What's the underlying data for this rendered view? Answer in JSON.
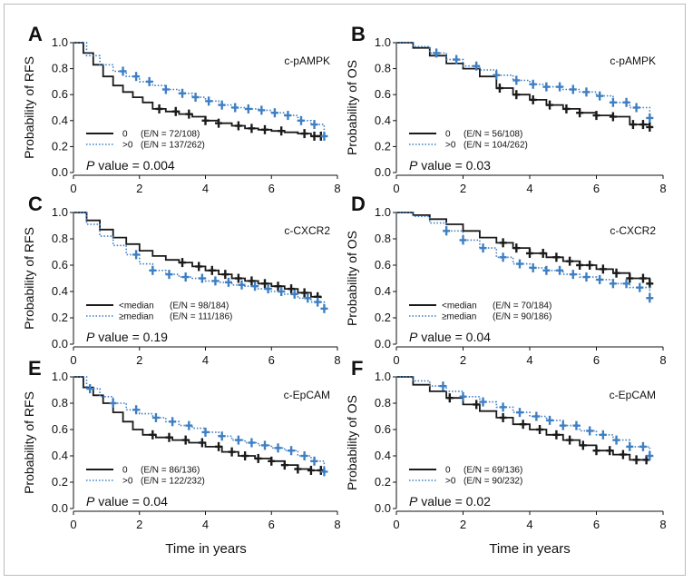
{
  "colors": {
    "black": "#1a1a1a",
    "blue": "#3e7fc3"
  },
  "axis": {
    "x_ticks": [
      "0",
      "2",
      "4",
      "6",
      "8"
    ],
    "y_ticks": [
      "0.0",
      "0.2",
      "0.4",
      "0.6",
      "0.8",
      "1.0"
    ]
  },
  "x_label": "Time in years",
  "chart_data": [
    {
      "letter": "A",
      "type": "line",
      "marker_name": "c-pAMPK",
      "ylabel": "Probability of RFS",
      "p_prefix": "P",
      "p_rest": " value = 0.004",
      "xlim": [
        0,
        8
      ],
      "ylim": [
        0,
        1
      ],
      "xlabel": "",
      "series": [
        {
          "name": "0   (E/N = 72/108)",
          "legend_key": "0",
          "legend_stats": "(E/N = 72/108)",
          "style": "solid",
          "color": "#1a1a1a",
          "x": [
            0,
            0.3,
            0.6,
            0.9,
            1.2,
            1.5,
            1.8,
            2.1,
            2.4,
            2.8,
            3.2,
            3.6,
            4.0,
            4.4,
            4.8,
            5.2,
            5.6,
            6.0,
            6.4,
            6.8,
            7.2,
            7.5
          ],
          "y": [
            1.0,
            0.92,
            0.83,
            0.74,
            0.67,
            0.62,
            0.58,
            0.54,
            0.49,
            0.47,
            0.45,
            0.43,
            0.4,
            0.38,
            0.36,
            0.34,
            0.33,
            0.32,
            0.31,
            0.3,
            0.28,
            0.28
          ],
          "censor_x": [
            2.6,
            3.1,
            3.5,
            4.0,
            4.4,
            5.0,
            5.4,
            5.8,
            6.3,
            7.0,
            7.3,
            7.5
          ]
        },
        {
          "name": ">0  (E/N = 137/262)",
          "legend_key": ">0",
          "legend_stats": "(E/N = 137/262)",
          "style": "dotted",
          "color": "#3e7fc3",
          "x": [
            0,
            0.4,
            0.8,
            1.2,
            1.6,
            2.0,
            2.4,
            2.8,
            3.2,
            3.6,
            4.0,
            4.4,
            4.8,
            5.2,
            5.6,
            6.0,
            6.4,
            6.8,
            7.2,
            7.6
          ],
          "y": [
            1.0,
            0.9,
            0.83,
            0.78,
            0.74,
            0.7,
            0.67,
            0.64,
            0.61,
            0.58,
            0.55,
            0.52,
            0.5,
            0.49,
            0.48,
            0.46,
            0.44,
            0.4,
            0.37,
            0.28
          ],
          "censor_x": [
            1.5,
            1.9,
            2.3,
            2.8,
            3.3,
            3.7,
            4.1,
            4.5,
            4.9,
            5.3,
            5.7,
            6.1,
            6.5,
            6.9,
            7.3,
            7.6
          ]
        }
      ]
    },
    {
      "letter": "B",
      "type": "line",
      "marker_name": "c-pAMPK",
      "ylabel": "Probability of OS",
      "p_prefix": "P",
      "p_rest": " value = 0.03",
      "xlim": [
        0,
        8
      ],
      "ylim": [
        0,
        1
      ],
      "xlabel": "",
      "series": [
        {
          "name": "0   (E/N = 56/108)",
          "legend_key": "0",
          "legend_stats": "(E/N = 56/108)",
          "style": "solid",
          "color": "#1a1a1a",
          "x": [
            0,
            0.5,
            1.0,
            1.5,
            2.0,
            2.5,
            3.0,
            3.5,
            4.0,
            4.5,
            5.0,
            5.5,
            6.0,
            6.5,
            7.0,
            7.6
          ],
          "y": [
            1.0,
            0.96,
            0.9,
            0.84,
            0.8,
            0.74,
            0.65,
            0.6,
            0.56,
            0.52,
            0.49,
            0.46,
            0.44,
            0.43,
            0.37,
            0.35
          ],
          "censor_x": [
            3.1,
            3.6,
            4.1,
            4.6,
            5.1,
            5.5,
            6.0,
            6.5,
            7.1,
            7.4,
            7.6
          ]
        },
        {
          "name": ">0  (E/N = 104/262)",
          "legend_key": ">0",
          "legend_stats": "(E/N = 104/262)",
          "style": "dotted",
          "color": "#3e7fc3",
          "x": [
            0,
            0.5,
            1.0,
            1.5,
            2.0,
            2.5,
            3.0,
            3.5,
            4.0,
            4.5,
            5.0,
            5.5,
            6.0,
            6.5,
            7.0,
            7.6
          ],
          "y": [
            1.0,
            0.97,
            0.92,
            0.87,
            0.82,
            0.79,
            0.75,
            0.71,
            0.68,
            0.66,
            0.64,
            0.62,
            0.59,
            0.54,
            0.5,
            0.42
          ],
          "censor_x": [
            1.2,
            1.8,
            2.4,
            3.0,
            3.6,
            4.1,
            4.5,
            4.9,
            5.3,
            5.7,
            6.1,
            6.5,
            6.9,
            7.2,
            7.6
          ]
        }
      ]
    },
    {
      "letter": "C",
      "type": "line",
      "marker_name": "c-CXCR2",
      "ylabel": "Probability of RFS",
      "p_prefix": "P",
      "p_rest": " value = 0.19",
      "xlim": [
        0,
        8
      ],
      "ylim": [
        0,
        1
      ],
      "xlabel": "",
      "series": [
        {
          "name": "<median  (E/N = 98/184)",
          "legend_key": "<median",
          "legend_stats": "(E/N = 98/184)",
          "style": "solid",
          "color": "#1a1a1a",
          "x": [
            0,
            0.4,
            0.8,
            1.2,
            1.6,
            2.0,
            2.4,
            2.8,
            3.2,
            3.6,
            4.0,
            4.4,
            4.8,
            5.2,
            5.6,
            6.0,
            6.4,
            6.8,
            7.2,
            7.5
          ],
          "y": [
            1.0,
            0.94,
            0.87,
            0.81,
            0.76,
            0.71,
            0.67,
            0.64,
            0.62,
            0.59,
            0.56,
            0.53,
            0.5,
            0.48,
            0.46,
            0.44,
            0.42,
            0.39,
            0.36,
            0.35
          ],
          "censor_x": [
            3.3,
            3.8,
            4.2,
            4.6,
            5.0,
            5.4,
            5.8,
            6.2,
            6.6,
            7.0,
            7.4
          ]
        },
        {
          "name": "≥median  (E/N = 111/186)",
          "legend_key": "≥median",
          "legend_stats": "(E/N = 111/186)",
          "style": "dotted",
          "color": "#3e7fc3",
          "x": [
            0,
            0.4,
            0.8,
            1.2,
            1.6,
            2.0,
            2.4,
            2.8,
            3.2,
            3.6,
            4.0,
            4.4,
            4.8,
            5.2,
            5.6,
            6.0,
            6.4,
            6.8,
            7.2,
            7.6
          ],
          "y": [
            1.0,
            0.91,
            0.82,
            0.75,
            0.68,
            0.61,
            0.56,
            0.53,
            0.51,
            0.5,
            0.48,
            0.47,
            0.45,
            0.44,
            0.42,
            0.4,
            0.38,
            0.35,
            0.32,
            0.27
          ],
          "censor_x": [
            1.9,
            2.4,
            2.9,
            3.4,
            3.9,
            4.3,
            4.7,
            5.1,
            5.5,
            5.9,
            6.3,
            6.7,
            7.1,
            7.4,
            7.6
          ]
        }
      ]
    },
    {
      "letter": "D",
      "type": "line",
      "marker_name": "c-CXCR2",
      "ylabel": "Probability of OS",
      "p_prefix": "P",
      "p_rest": " value = 0.04",
      "xlim": [
        0,
        8
      ],
      "ylim": [
        0,
        1
      ],
      "xlabel": "",
      "series": [
        {
          "name": "<median  (E/N = 70/184)",
          "legend_key": "<median",
          "legend_stats": "(E/N = 70/184)",
          "style": "solid",
          "color": "#1a1a1a",
          "x": [
            0,
            0.5,
            1.0,
            1.5,
            2.0,
            2.5,
            3.0,
            3.5,
            4.0,
            4.5,
            5.0,
            5.5,
            6.0,
            6.5,
            7.0,
            7.6
          ],
          "y": [
            1.0,
            0.98,
            0.95,
            0.91,
            0.86,
            0.81,
            0.77,
            0.73,
            0.69,
            0.66,
            0.63,
            0.6,
            0.57,
            0.54,
            0.5,
            0.46
          ],
          "censor_x": [
            3.2,
            3.6,
            4.0,
            4.4,
            4.8,
            5.2,
            5.5,
            5.8,
            6.2,
            6.6,
            7.0,
            7.4,
            7.6
          ]
        },
        {
          "name": "≥median  (E/N = 90/186)",
          "legend_key": "≥median",
          "legend_stats": "(E/N = 90/186)",
          "style": "dotted",
          "color": "#3e7fc3",
          "x": [
            0,
            0.5,
            1.0,
            1.5,
            2.0,
            2.5,
            3.0,
            3.5,
            4.0,
            4.5,
            5.0,
            5.5,
            6.0,
            6.5,
            7.0,
            7.6
          ],
          "y": [
            1.0,
            0.97,
            0.92,
            0.86,
            0.79,
            0.73,
            0.66,
            0.61,
            0.58,
            0.56,
            0.53,
            0.51,
            0.49,
            0.46,
            0.43,
            0.35
          ],
          "censor_x": [
            1.5,
            2.0,
            2.6,
            3.2,
            3.7,
            4.1,
            4.5,
            4.9,
            5.3,
            5.7,
            6.1,
            6.5,
            6.9,
            7.3,
            7.6
          ]
        }
      ]
    },
    {
      "letter": "E",
      "type": "line",
      "marker_name": "c-EpCAM",
      "ylabel": "Probability of RFS",
      "p_prefix": "P",
      "p_rest": " value = 0.04",
      "xlim": [
        0,
        8
      ],
      "ylim": [
        0,
        1
      ],
      "xlabel": "",
      "series": [
        {
          "name": "0   (E/N = 86/136)",
          "legend_key": "0",
          "legend_stats": "(E/N = 86/136)",
          "style": "solid",
          "color": "#1a1a1a",
          "x": [
            0,
            0.3,
            0.6,
            0.9,
            1.2,
            1.5,
            1.8,
            2.1,
            2.5,
            3.0,
            3.5,
            4.0,
            4.5,
            5.0,
            5.5,
            6.0,
            6.4,
            6.8,
            7.2,
            7.6
          ],
          "y": [
            1.0,
            0.92,
            0.86,
            0.8,
            0.73,
            0.66,
            0.6,
            0.56,
            0.54,
            0.52,
            0.5,
            0.47,
            0.43,
            0.4,
            0.38,
            0.36,
            0.33,
            0.3,
            0.29,
            0.28
          ],
          "censor_x": [
            2.4,
            2.9,
            3.4,
            3.9,
            4.4,
            4.8,
            5.2,
            5.6,
            6.0,
            6.4,
            6.8,
            7.2,
            7.5
          ]
        },
        {
          "name": ">0  (E/N = 122/232)",
          "legend_key": ">0",
          "legend_stats": "(E/N = 122/232)",
          "style": "dotted",
          "color": "#3e7fc3",
          "x": [
            0,
            0.4,
            0.8,
            1.2,
            1.6,
            2.0,
            2.4,
            2.8,
            3.2,
            3.6,
            4.0,
            4.4,
            4.8,
            5.2,
            5.6,
            6.0,
            6.4,
            6.8,
            7.2,
            7.6
          ],
          "y": [
            1.0,
            0.91,
            0.85,
            0.8,
            0.75,
            0.72,
            0.69,
            0.66,
            0.63,
            0.61,
            0.58,
            0.55,
            0.52,
            0.5,
            0.48,
            0.46,
            0.44,
            0.4,
            0.36,
            0.28
          ],
          "censor_x": [
            0.5,
            1.2,
            1.9,
            2.5,
            3.0,
            3.5,
            4.0,
            4.5,
            5.0,
            5.4,
            5.8,
            6.2,
            6.6,
            7.0,
            7.3,
            7.6
          ]
        }
      ]
    },
    {
      "letter": "F",
      "type": "line",
      "marker_name": "c-EpCAM",
      "ylabel": "Probability of OS",
      "p_prefix": "P",
      "p_rest": " value = 0.02",
      "xlim": [
        0,
        8
      ],
      "ylim": [
        0,
        1
      ],
      "xlabel": "",
      "series": [
        {
          "name": "0   (E/N = 69/136)",
          "legend_key": "0",
          "legend_stats": "(E/N = 69/136)",
          "style": "solid",
          "color": "#1a1a1a",
          "x": [
            0,
            0.5,
            1.0,
            1.5,
            2.0,
            2.5,
            3.0,
            3.5,
            4.0,
            4.5,
            5.0,
            5.5,
            6.0,
            6.5,
            7.0,
            7.6
          ],
          "y": [
            1.0,
            0.94,
            0.89,
            0.84,
            0.79,
            0.74,
            0.69,
            0.64,
            0.6,
            0.56,
            0.52,
            0.48,
            0.44,
            0.41,
            0.37,
            0.37
          ],
          "censor_x": [
            1.6,
            2.4,
            3.2,
            3.8,
            4.3,
            4.8,
            5.2,
            5.6,
            6.0,
            6.4,
            6.8,
            7.2,
            7.5
          ]
        },
        {
          "name": ">0  (E/N = 90/232)",
          "legend_key": ">0",
          "legend_stats": "(E/N = 90/232)",
          "style": "dotted",
          "color": "#3e7fc3",
          "x": [
            0,
            0.5,
            1.0,
            1.5,
            2.0,
            2.5,
            3.0,
            3.5,
            4.0,
            4.5,
            5.0,
            5.5,
            6.0,
            6.5,
            7.0,
            7.6
          ],
          "y": [
            1.0,
            0.97,
            0.93,
            0.89,
            0.85,
            0.81,
            0.77,
            0.73,
            0.7,
            0.67,
            0.63,
            0.59,
            0.56,
            0.52,
            0.47,
            0.4
          ],
          "censor_x": [
            1.4,
            2.0,
            2.6,
            3.2,
            3.7,
            4.2,
            4.6,
            5.0,
            5.4,
            5.8,
            6.2,
            6.6,
            7.0,
            7.4,
            7.6
          ]
        }
      ]
    }
  ]
}
